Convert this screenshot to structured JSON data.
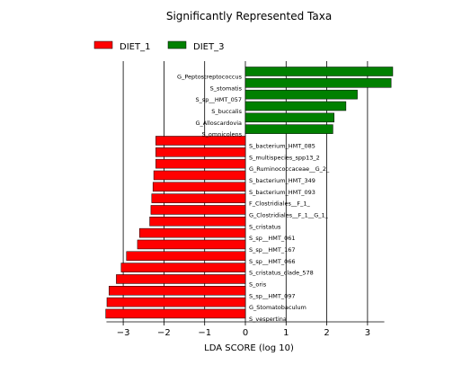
{
  "chart_data": {
    "type": "bar",
    "orientation": "horizontal",
    "title": "Significantly Represented Taxa",
    "xlabel": "LDA SCORE (log 10)",
    "ylabel": "",
    "xlim": [
      -3.5,
      3.5
    ],
    "xticks": [
      -3,
      -2,
      -1,
      0,
      1,
      2,
      3
    ],
    "xtick_labels": [
      "−3",
      "−2",
      "−1",
      "0",
      "1",
      "2",
      "3"
    ],
    "grid": "vertical lines at x ticks",
    "legend_position": "top-left",
    "colors": {
      "DIET_1": "#ff0000",
      "DIET_3": "#008000"
    },
    "series": [
      {
        "name": "DIET_3",
        "color": "#008000"
      },
      {
        "name": "DIET_1",
        "color": "#ff0000"
      }
    ],
    "bars": [
      {
        "label": "G_Peptostreptococcus",
        "value": 3.62,
        "group": "DIET_3"
      },
      {
        "label": "S_stomatis",
        "value": 3.58,
        "group": "DIET_3"
      },
      {
        "label": "S_sp__HMT_057",
        "value": 2.75,
        "group": "DIET_3"
      },
      {
        "label": "S_buccalis",
        "value": 2.47,
        "group": "DIET_3"
      },
      {
        "label": "G_Alloscardovia",
        "value": 2.18,
        "group": "DIET_3"
      },
      {
        "label": "S_omnicolens",
        "value": 2.15,
        "group": "DIET_3"
      },
      {
        "label": "S_bacterium_HMT_085",
        "value": -2.2,
        "group": "DIET_1"
      },
      {
        "label": "S_multispecies_spp13_2",
        "value": -2.2,
        "group": "DIET_1"
      },
      {
        "label": "G_Ruminococcaceae__G_2_",
        "value": -2.2,
        "group": "DIET_1"
      },
      {
        "label": "S_bacterium_HMT_349",
        "value": -2.25,
        "group": "DIET_1"
      },
      {
        "label": "S_bacterium_HMT_093",
        "value": -2.27,
        "group": "DIET_1"
      },
      {
        "label": "F_Clostridiales__F_1_",
        "value": -2.3,
        "group": "DIET_1"
      },
      {
        "label": "G_Clostridiales__F_1__G_1_",
        "value": -2.32,
        "group": "DIET_1"
      },
      {
        "label": "S_cristatus",
        "value": -2.35,
        "group": "DIET_1"
      },
      {
        "label": "S_sp__HMT_061",
        "value": -2.6,
        "group": "DIET_1"
      },
      {
        "label": "S_sp__HMT_167",
        "value": -2.65,
        "group": "DIET_1"
      },
      {
        "label": "S_sp__HMT_066",
        "value": -2.92,
        "group": "DIET_1"
      },
      {
        "label": "S_cristatus_clade_578",
        "value": -3.05,
        "group": "DIET_1"
      },
      {
        "label": "S_oris",
        "value": -3.17,
        "group": "DIET_1"
      },
      {
        "label": "S_sp__HMT_097",
        "value": -3.35,
        "group": "DIET_1"
      },
      {
        "label": "G_Stomatobaculum",
        "value": -3.4,
        "group": "DIET_1"
      },
      {
        "label": "S_vespertina",
        "value": -3.43,
        "group": "DIET_1"
      }
    ]
  }
}
